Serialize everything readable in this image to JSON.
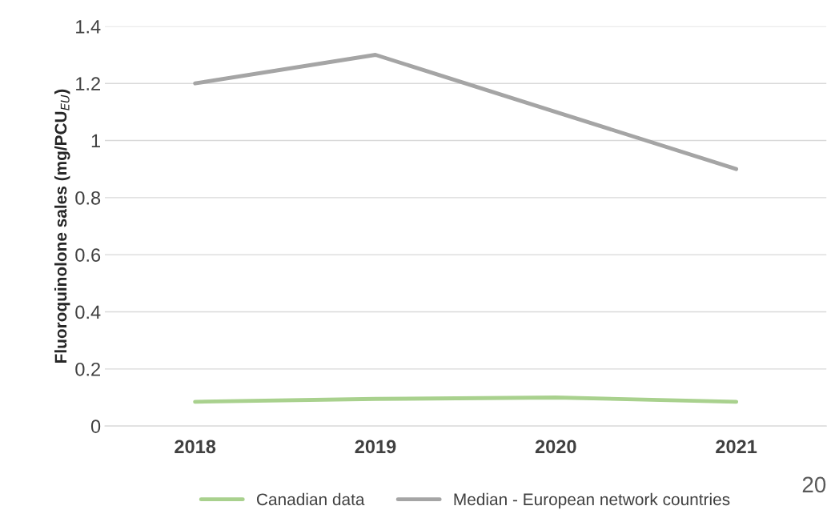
{
  "chart_data": {
    "type": "line",
    "ylabel": "Fluoroquinolone sales (mg/PCU$_{EU}$)",
    "categories": [
      "2018",
      "2019",
      "2020",
      "2021"
    ],
    "series": [
      {
        "name": "Canadian data",
        "color": "#a9d18e",
        "values": [
          0.085,
          0.095,
          0.1,
          0.085
        ]
      },
      {
        "name": "Median - European network countries",
        "color": "#a5a5a5",
        "values": [
          1.2,
          1.3,
          1.1,
          0.9
        ]
      }
    ],
    "ylim": [
      0,
      1.4
    ],
    "yticks": [
      0,
      0.2,
      0.4,
      0.6,
      0.8,
      1,
      1.2,
      1.4
    ],
    "grid": "y",
    "legend": "bottom",
    "marker": "none",
    "line_style": "solid",
    "annotations": [
      "20"
    ]
  }
}
